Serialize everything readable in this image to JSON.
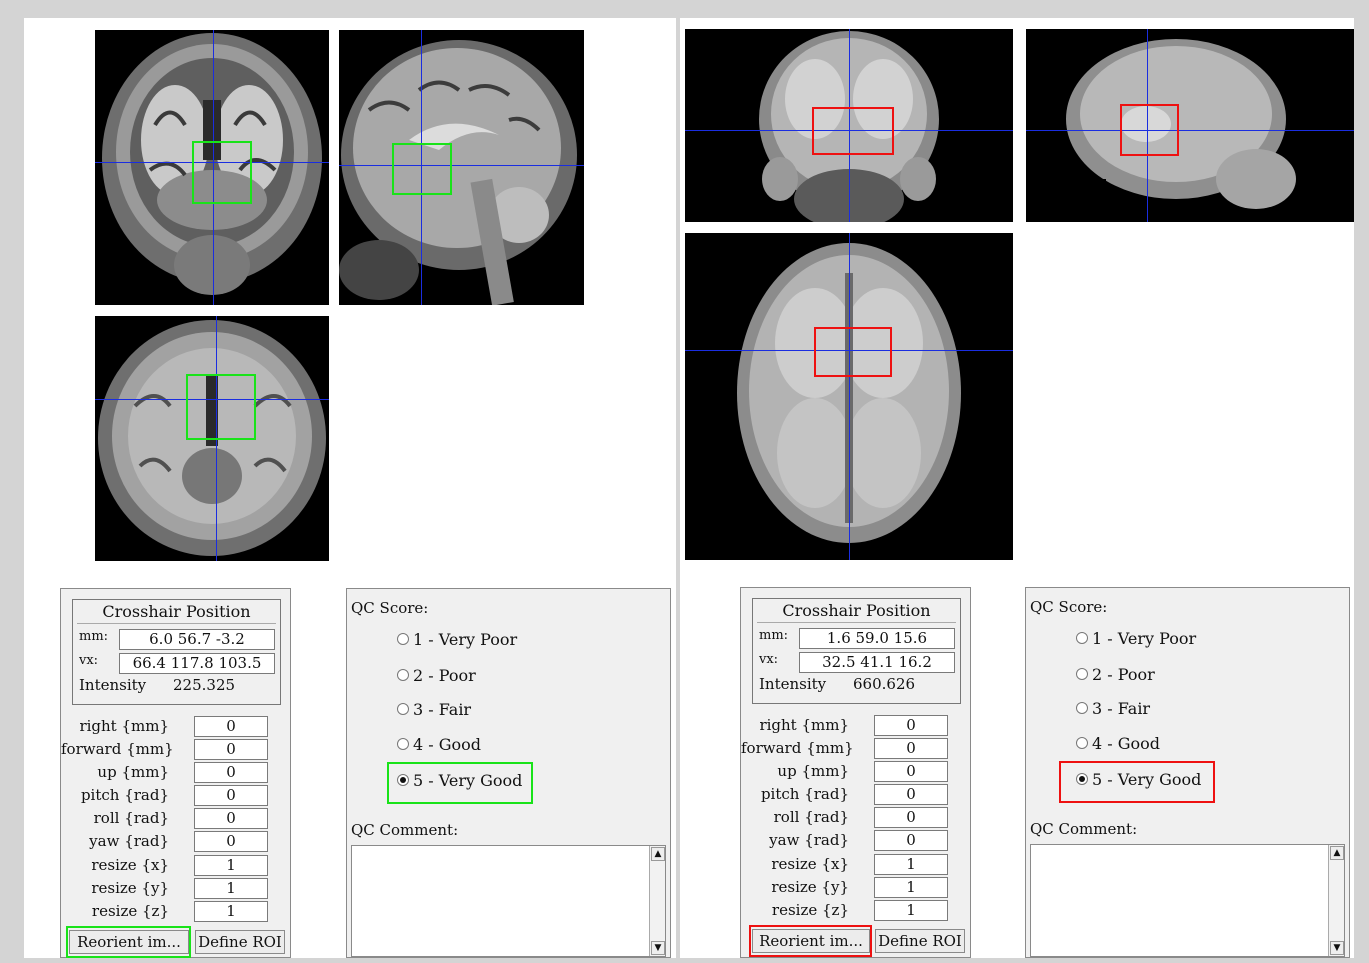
{
  "left": {
    "crosshair": {
      "title": "Crosshair Position",
      "mm_label": "mm:",
      "mm_value": "6.0 56.7 -3.2",
      "vx_label": "vx:",
      "vx_value": "66.4 117.8 103.5",
      "intensity_label": "Intensity",
      "intensity_value": "225.325"
    },
    "params": [
      {
        "label": "right  {mm}",
        "value": "0"
      },
      {
        "label": "forward  {mm}",
        "value": "0"
      },
      {
        "label": "up  {mm}",
        "value": "0"
      },
      {
        "label": "pitch  {rad}",
        "value": "0"
      },
      {
        "label": "roll  {rad}",
        "value": "0"
      },
      {
        "label": "yaw  {rad}",
        "value": "0"
      },
      {
        "label": "resize  {x}",
        "value": "1"
      },
      {
        "label": "resize  {y}",
        "value": "1"
      },
      {
        "label": "resize  {z}",
        "value": "1"
      }
    ],
    "buttons": {
      "reorient": "Reorient im...",
      "define_roi": "Define ROI"
    },
    "qc": {
      "score_label": "QC Score:",
      "options": [
        "1 - Very Poor",
        "2 - Poor",
        "3 - Fair",
        "4 - Good",
        "5 - Very Good"
      ],
      "selected": "5 - Very Good",
      "comment_label": "QC Comment:",
      "comment": ""
    },
    "highlight_color": "#19e319"
  },
  "right": {
    "crosshair": {
      "title": "Crosshair Position",
      "mm_label": "mm:",
      "mm_value": "1.6 59.0 15.6",
      "vx_label": "vx:",
      "vx_value": "32.5 41.1 16.2",
      "intensity_label": "Intensity",
      "intensity_value": "660.626"
    },
    "params": [
      {
        "label": "right  {mm}",
        "value": "0"
      },
      {
        "label": "forward  {mm}",
        "value": "0"
      },
      {
        "label": "up  {mm}",
        "value": "0"
      },
      {
        "label": "pitch  {rad}",
        "value": "0"
      },
      {
        "label": "roll  {rad}",
        "value": "0"
      },
      {
        "label": "yaw  {rad}",
        "value": "0"
      },
      {
        "label": "resize  {x}",
        "value": "1"
      },
      {
        "label": "resize  {y}",
        "value": "1"
      },
      {
        "label": "resize  {z}",
        "value": "1"
      }
    ],
    "buttons": {
      "reorient": "Reorient im...",
      "define_roi": "Define ROI"
    },
    "qc": {
      "score_label": "QC Score:",
      "options": [
        "1 - Very Poor",
        "2 - Poor",
        "3 - Fair",
        "4 - Good",
        "5 - Very Good"
      ],
      "selected": "5 - Very Good",
      "comment_label": "QC Comment:",
      "comment": ""
    },
    "highlight_color": "#ee1111"
  },
  "crosshair_color": "#1a2de0"
}
